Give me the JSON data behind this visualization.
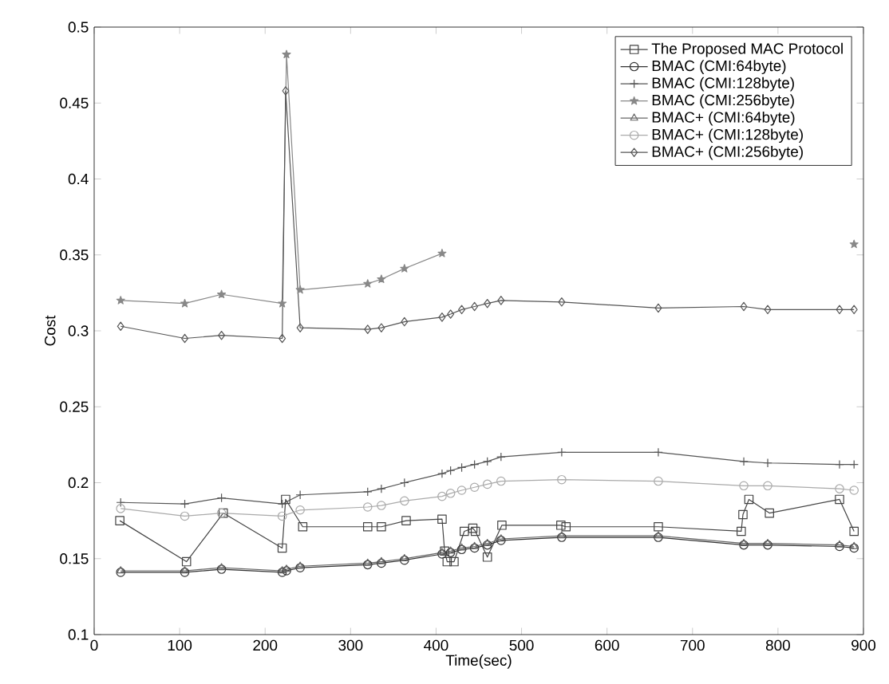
{
  "chart_data": {
    "type": "line",
    "xlabel": "Time(sec)",
    "ylabel": "Cost",
    "xlim": [
      0,
      900
    ],
    "ylim": [
      0.1,
      0.5
    ],
    "xticks": [
      0,
      100,
      200,
      300,
      400,
      500,
      600,
      700,
      800,
      900
    ],
    "yticks": [
      0.1,
      0.15,
      0.2,
      0.25,
      0.3,
      0.35,
      0.4,
      0.45,
      0.5
    ],
    "grid": false,
    "legend": "top right",
    "series": [
      {
        "name": "The Proposed MAC Protocol",
        "color": "#444444",
        "marker": "square",
        "x": [
          30,
          108,
          151,
          220,
          224,
          244,
          320,
          336,
          365,
          407,
          410,
          413,
          421,
          433,
          443,
          446,
          460,
          477,
          546,
          552,
          660,
          757,
          759,
          766,
          790,
          872,
          889
        ],
        "values": [
          0.175,
          0.148,
          0.18,
          0.157,
          0.189,
          0.171,
          0.171,
          0.171,
          0.175,
          0.176,
          0.155,
          0.148,
          0.148,
          0.168,
          0.17,
          0.168,
          0.151,
          0.172,
          0.172,
          0.171,
          0.171,
          0.168,
          0.179,
          0.189,
          0.18,
          0.189,
          0.168
        ]
      },
      {
        "name": "BMAC (CMI:64byte)",
        "color": "#333333",
        "marker": "circle",
        "x": [
          31,
          106,
          149,
          220,
          225,
          241,
          320,
          336,
          363,
          407,
          417,
          430,
          445,
          460,
          476,
          547,
          660,
          760,
          788,
          872,
          889
        ],
        "values": [
          0.141,
          0.141,
          0.143,
          0.141,
          0.142,
          0.144,
          0.146,
          0.147,
          0.149,
          0.153,
          0.154,
          0.156,
          0.157,
          0.159,
          0.162,
          0.164,
          0.164,
          0.159,
          0.159,
          0.158,
          0.157
        ]
      },
      {
        "name": "BMAC (CMI:128byte)",
        "color": "#555555",
        "marker": "cross",
        "x": [
          31,
          106,
          149,
          220,
          241,
          320,
          336,
          363,
          407,
          417,
          430,
          445,
          460,
          476,
          547,
          660,
          760,
          788,
          872,
          889
        ],
        "values": [
          0.187,
          0.186,
          0.19,
          0.186,
          0.192,
          0.194,
          0.196,
          0.2,
          0.206,
          0.208,
          0.21,
          0.212,
          0.214,
          0.217,
          0.22,
          0.22,
          0.214,
          0.213,
          0.212,
          0.212
        ]
      },
      {
        "name": "BMAC (CMI:256byte)",
        "color": "#888888",
        "marker": "star",
        "x": [
          31,
          106,
          149,
          220,
          225,
          241,
          320,
          336,
          363,
          407,
          430,
          547,
          660,
          760,
          889
        ],
        "values": [
          0.32,
          0.318,
          0.324,
          0.318,
          0.482,
          0.327,
          0.331,
          0.334,
          0.341,
          0.351,
          null,
          null,
          null,
          null,
          0.357
        ]
      },
      {
        "name": "BMAC+ (CMI:64byte)",
        "color": "#666666",
        "marker": "triangle",
        "x": [
          31,
          106,
          149,
          220,
          225,
          241,
          320,
          336,
          363,
          407,
          417,
          430,
          445,
          460,
          476,
          547,
          660,
          760,
          788,
          872,
          889
        ],
        "values": [
          0.142,
          0.142,
          0.144,
          0.142,
          0.143,
          0.145,
          0.147,
          0.148,
          0.15,
          0.154,
          0.155,
          0.157,
          0.158,
          0.16,
          0.163,
          0.165,
          0.165,
          0.16,
          0.16,
          0.159,
          0.158
        ]
      },
      {
        "name": "BMAC+ (CMI:128byte)",
        "color": "#aaaaaa",
        "marker": "circle",
        "x": [
          31,
          106,
          149,
          220,
          241,
          320,
          336,
          363,
          407,
          417,
          430,
          445,
          460,
          476,
          547,
          660,
          760,
          788,
          872,
          889
        ],
        "values": [
          0.183,
          0.178,
          0.18,
          0.178,
          0.182,
          0.184,
          0.185,
          0.188,
          0.191,
          0.193,
          0.195,
          0.197,
          0.199,
          0.201,
          0.202,
          0.201,
          0.198,
          0.198,
          0.196,
          0.195
        ]
      },
      {
        "name": "BMAC+ (CMI:256byte)",
        "color": "#555555",
        "marker": "diamond",
        "x": [
          31,
          106,
          149,
          220,
          224,
          241,
          320,
          336,
          363,
          407,
          417,
          430,
          445,
          460,
          476,
          547,
          660,
          760,
          788,
          872,
          889
        ],
        "values": [
          0.303,
          0.295,
          0.297,
          0.295,
          0.458,
          0.302,
          0.301,
          0.302,
          0.306,
          0.309,
          0.311,
          0.314,
          0.316,
          0.318,
          0.32,
          0.319,
          0.315,
          0.316,
          0.314,
          0.314,
          0.314
        ]
      }
    ]
  }
}
